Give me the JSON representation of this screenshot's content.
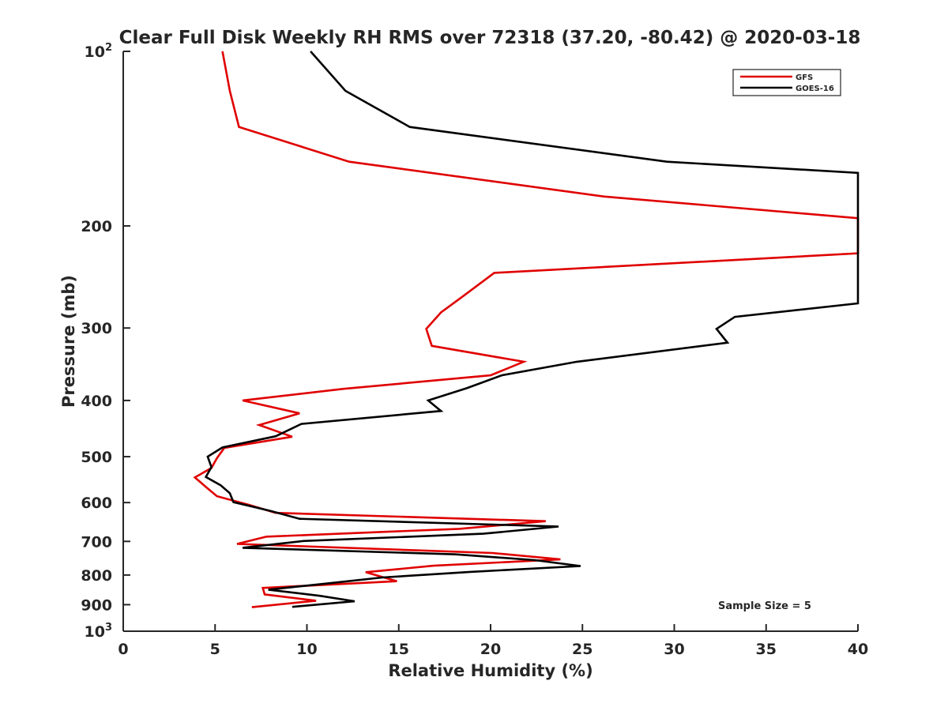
{
  "chart_data": {
    "type": "line",
    "title": "Clear Full Disk Weekly RH RMS over 72318 (37.20, -80.42) @ 2020-03-18",
    "xlabel": "Relative Humidity (%)",
    "ylabel": "Pressure (mb)",
    "xlim": [
      0,
      40
    ],
    "ylim": [
      100,
      1000
    ],
    "yscale": "log",
    "y_reversed": true,
    "grid": false,
    "legend_position": "top-right",
    "annotation": "Sample Size = 5",
    "x_ticks": [
      "0",
      "5",
      "10",
      "15",
      "20",
      "25",
      "30",
      "35",
      "40"
    ],
    "y_ticks": [
      {
        "value": 100,
        "base": "10",
        "exp": "2"
      },
      {
        "value": 200,
        "label": "200"
      },
      {
        "value": 300,
        "label": "300"
      },
      {
        "value": 400,
        "label": "400"
      },
      {
        "value": 500,
        "label": "500"
      },
      {
        "value": 600,
        "label": "600"
      },
      {
        "value": 700,
        "label": "700"
      },
      {
        "value": 800,
        "label": "800"
      },
      {
        "value": 900,
        "label": "900"
      },
      {
        "value": 1000,
        "base": "10",
        "exp": "3"
      }
    ],
    "series": [
      {
        "name": "GFS",
        "color": "#e00000",
        "points": [
          [
            5.4,
            100
          ],
          [
            5.8,
            117
          ],
          [
            6.3,
            135
          ],
          [
            12.3,
            155
          ],
          [
            26.2,
            178
          ],
          [
            40,
            194
          ],
          [
            40,
            223
          ],
          [
            20.2,
            241
          ],
          [
            18.6,
            263
          ],
          [
            17.3,
            282
          ],
          [
            16.5,
            301
          ],
          [
            16.8,
            322
          ],
          [
            21.8,
            343
          ],
          [
            20.0,
            362
          ],
          [
            12.0,
            382
          ],
          [
            6.5,
            400
          ],
          [
            9.6,
            421
          ],
          [
            7.4,
            441
          ],
          [
            9.2,
            462
          ],
          [
            5.5,
            483
          ],
          [
            5.1,
            503
          ],
          [
            4.8,
            523
          ],
          [
            3.9,
            543
          ],
          [
            4.5,
            564
          ],
          [
            5.1,
            585
          ],
          [
            6.8,
            605
          ],
          [
            8.3,
            625
          ],
          [
            23.0,
            646
          ],
          [
            18.3,
            666
          ],
          [
            7.8,
            687
          ],
          [
            6.2,
            707
          ],
          [
            20.1,
            733
          ],
          [
            23.8,
            752
          ],
          [
            16.9,
            771
          ],
          [
            13.2,
            791
          ],
          [
            14.9,
            820
          ],
          [
            7.6,
            842
          ],
          [
            7.7,
            864
          ],
          [
            10.5,
            886
          ],
          [
            7.0,
            909
          ]
        ]
      },
      {
        "name": "GOES-16",
        "color": "#000000",
        "points": [
          [
            10.2,
            100
          ],
          [
            12.1,
            117
          ],
          [
            15.6,
            135
          ],
          [
            29.6,
            155
          ],
          [
            40,
            162
          ],
          [
            40,
            272
          ],
          [
            33.3,
            287
          ],
          [
            32.3,
            301
          ],
          [
            32.9,
            318
          ],
          [
            24.7,
            343
          ],
          [
            20.6,
            362
          ],
          [
            18.7,
            381
          ],
          [
            16.6,
            400
          ],
          [
            17.3,
            417
          ],
          [
            9.7,
            439
          ],
          [
            8.3,
            461
          ],
          [
            5.4,
            482
          ],
          [
            4.6,
            500
          ],
          [
            4.8,
            521
          ],
          [
            4.5,
            542
          ],
          [
            5.3,
            560
          ],
          [
            5.8,
            578
          ],
          [
            6.0,
            599
          ],
          [
            8.0,
            620
          ],
          [
            9.6,
            640
          ],
          [
            23.7,
            660
          ],
          [
            19.6,
            679
          ],
          [
            9.8,
            699
          ],
          [
            6.5,
            718
          ],
          [
            18.1,
            737
          ],
          [
            22.4,
            754
          ],
          [
            24.9,
            772
          ],
          [
            18.9,
            790
          ],
          [
            14.1,
            808
          ],
          [
            11.0,
            828
          ],
          [
            7.9,
            848
          ],
          [
            10.7,
            869
          ],
          [
            12.6,
            888
          ],
          [
            9.2,
            908
          ]
        ]
      }
    ]
  }
}
